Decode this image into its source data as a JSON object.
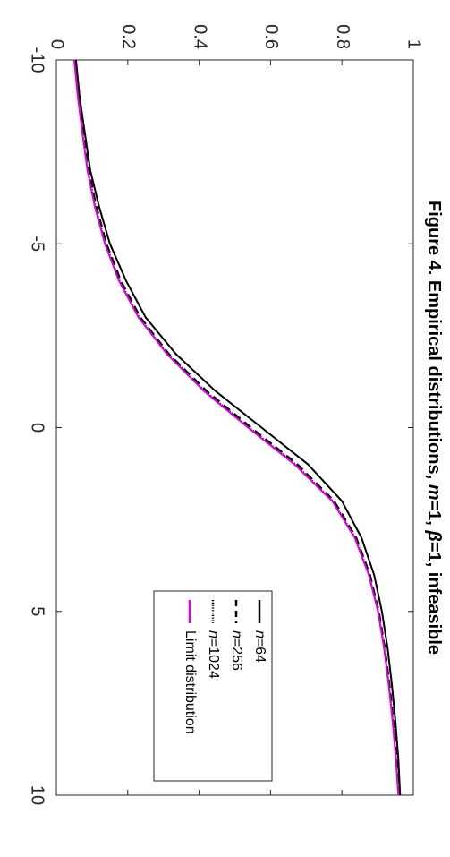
{
  "chart_data": {
    "type": "line",
    "title_parts": [
      {
        "text": "Figure 4. Empirical distributions, ",
        "italic": false
      },
      {
        "text": "m",
        "italic": true
      },
      {
        "text": "=1, ",
        "italic": false
      },
      {
        "text": "β",
        "italic": true
      },
      {
        "text": "=1, infeasible",
        "italic": false
      }
    ],
    "xlim": [
      -10,
      10
    ],
    "ylim": [
      0,
      1
    ],
    "x_ticks": [
      "-10",
      "-5",
      "0",
      "5",
      "10"
    ],
    "y_ticks": [
      "0",
      "0.2",
      "0.4",
      "0.6",
      "0.8",
      "1"
    ],
    "grid": false,
    "legend_position": "bottom-right",
    "series": [
      {
        "name_parts": [
          {
            "text": "n",
            "italic": true
          },
          {
            "text": "=64",
            "italic": false
          }
        ],
        "color": "#000000",
        "style": "solid",
        "x": [
          -10,
          -9,
          -8,
          -7,
          -6,
          -5,
          -4,
          -3,
          -2,
          -1,
          0,
          1,
          2,
          3,
          4,
          5,
          6,
          7,
          8,
          9,
          10
        ],
        "y": [
          0.055,
          0.065,
          0.08,
          0.095,
          0.12,
          0.15,
          0.195,
          0.25,
          0.335,
          0.445,
          0.575,
          0.705,
          0.8,
          0.855,
          0.89,
          0.912,
          0.928,
          0.94,
          0.95,
          0.958,
          0.963
        ]
      },
      {
        "name_parts": [
          {
            "text": "n",
            "italic": true
          },
          {
            "text": "=256",
            "italic": false
          }
        ],
        "color": "#000000",
        "style": "dashed",
        "x": [
          -10,
          -9,
          -8,
          -7,
          -6,
          -5,
          -4,
          -3,
          -2,
          -1,
          0,
          1,
          2,
          3,
          4,
          5,
          6,
          7,
          8,
          9,
          10
        ],
        "y": [
          0.052,
          0.062,
          0.075,
          0.09,
          0.112,
          0.14,
          0.18,
          0.235,
          0.315,
          0.42,
          0.545,
          0.675,
          0.778,
          0.84,
          0.878,
          0.903,
          0.92,
          0.933,
          0.944,
          0.953,
          0.96
        ]
      },
      {
        "name_parts": [
          {
            "text": "n",
            "italic": true
          },
          {
            "text": "=1024",
            "italic": false
          }
        ],
        "color": "#000000",
        "style": "dotted",
        "x": [
          -10,
          -9,
          -8,
          -7,
          -6,
          -5,
          -4,
          -3,
          -2,
          -1,
          0,
          1,
          2,
          3,
          4,
          5,
          6,
          7,
          8,
          9,
          10
        ],
        "y": [
          0.051,
          0.061,
          0.074,
          0.088,
          0.11,
          0.138,
          0.177,
          0.232,
          0.312,
          0.416,
          0.54,
          0.67,
          0.775,
          0.838,
          0.876,
          0.902,
          0.919,
          0.932,
          0.943,
          0.952,
          0.959
        ]
      },
      {
        "name_parts": [
          {
            "text": "Limit distribution",
            "italic": false
          }
        ],
        "color": "#e000e0",
        "style": "solid",
        "x": [
          -10,
          -9,
          -8,
          -7,
          -6,
          -5,
          -4,
          -3,
          -2,
          -1,
          0,
          1,
          2,
          3,
          4,
          5,
          6,
          7,
          8,
          9,
          10
        ],
        "y": [
          0.05,
          0.06,
          0.073,
          0.087,
          0.108,
          0.136,
          0.175,
          0.23,
          0.31,
          0.413,
          0.537,
          0.667,
          0.773,
          0.836,
          0.875,
          0.901,
          0.918,
          0.931,
          0.942,
          0.951,
          0.958
        ]
      }
    ]
  }
}
